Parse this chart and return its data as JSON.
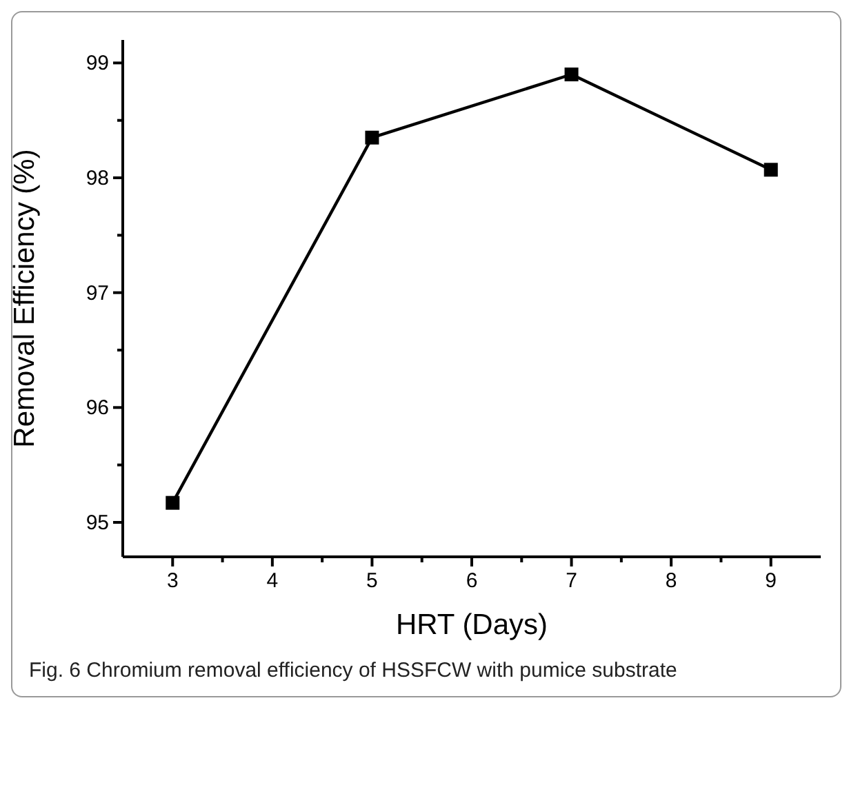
{
  "chart_data": {
    "type": "line",
    "xlabel": "HRT (Days)",
    "ylabel": "Removal Efficiency (%)",
    "x": [
      3,
      5,
      7,
      9
    ],
    "series": [
      {
        "color": "#000000",
        "values": [
          95.17,
          98.35,
          98.9,
          98.07
        ]
      }
    ],
    "xlim": [
      2.5,
      9.5
    ],
    "xticks": [
      3,
      {
        "value": 3.5,
        "label": null
      },
      4,
      {
        "value": 4.5,
        "label": null
      },
      5,
      {
        "value": 5.5,
        "label": null
      },
      6,
      {
        "value": 6.5,
        "label": null
      },
      7,
      {
        "value": 7.5,
        "label": null
      },
      8,
      {
        "value": 8.5,
        "label": null
      },
      9
    ],
    "ylim": [
      94.7,
      99.2
    ],
    "yticks": [
      95,
      {
        "value": 95.5,
        "label": null
      },
      96,
      {
        "value": 96.5,
        "label": null
      },
      97,
      {
        "value": 97.5,
        "label": null
      },
      98,
      {
        "value": 98.5,
        "label": null
      },
      99
    ],
    "marker": "square",
    "line_style": "solid",
    "grid": false,
    "legend": false,
    "annotations": [
      "Fig. 6 Chromium removal efficiency of HSSFCW with pumice substrate"
    ]
  }
}
